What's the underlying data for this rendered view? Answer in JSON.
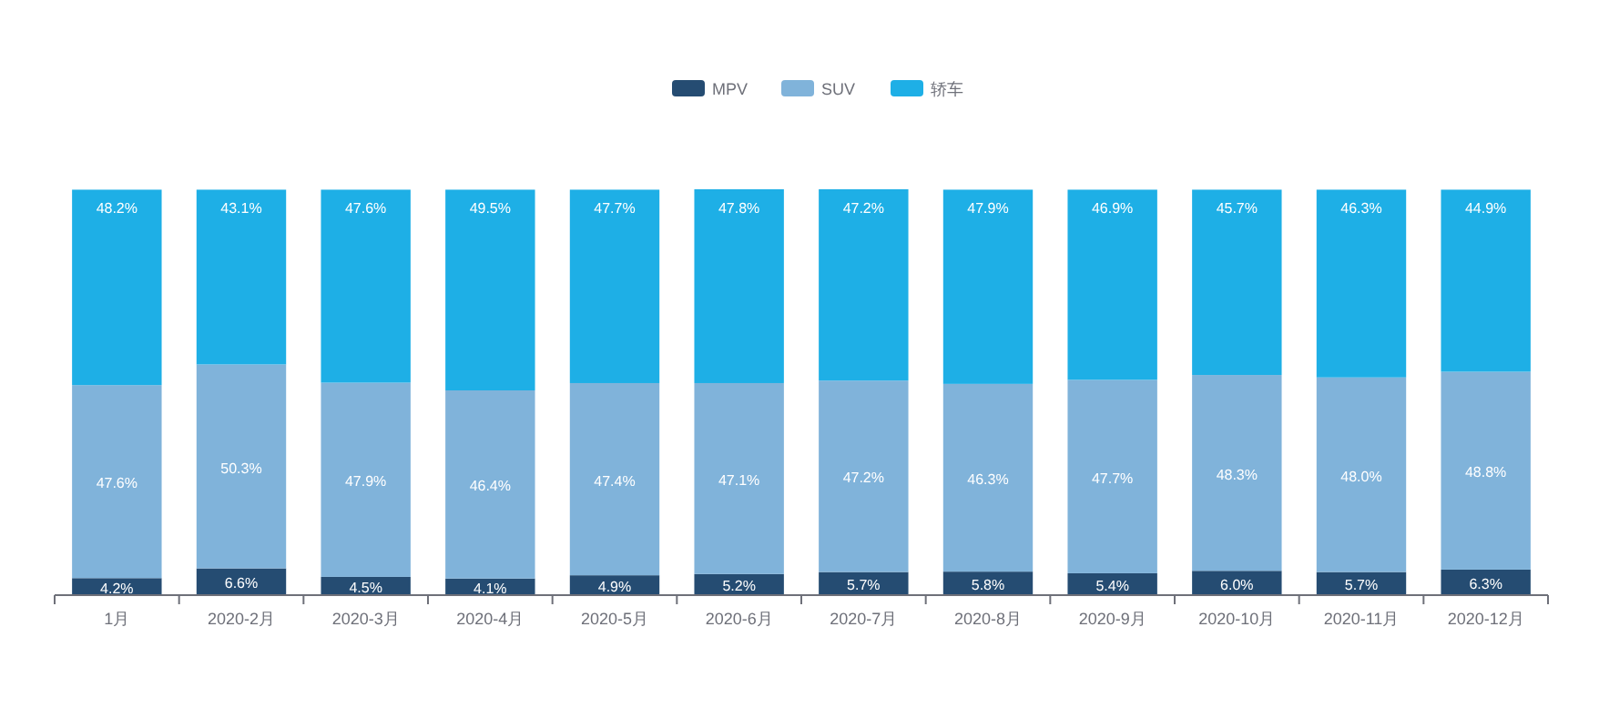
{
  "chart_data": {
    "type": "bar",
    "stacked": true,
    "legend": "top",
    "grid": false,
    "categories": [
      "1月",
      "2020-2月",
      "2020-3月",
      "2020-4月",
      "2020-5月",
      "2020-6月",
      "2020-7月",
      "2020-8月",
      "2020-9月",
      "2020-10月",
      "2020-11月",
      "2020-12月"
    ],
    "series": [
      {
        "name": "MPV",
        "color": "#254c72",
        "values": [
          4.2,
          6.6,
          4.5,
          4.1,
          4.9,
          5.2,
          5.7,
          5.8,
          5.4,
          6.0,
          5.7,
          6.3
        ],
        "value_labels": [
          "4.2%",
          "6.6%",
          "4.5%",
          "4.1%",
          "4.9%",
          "5.2%",
          "5.7%",
          "5.8%",
          "5.4%",
          "6.0%",
          "5.7%",
          "6.3%"
        ]
      },
      {
        "name": "SUV",
        "color": "#80b3da",
        "values": [
          47.6,
          50.3,
          47.9,
          46.4,
          47.4,
          47.1,
          47.2,
          46.3,
          47.7,
          48.3,
          48.0,
          48.8
        ],
        "value_labels": [
          "47.6%",
          "50.3%",
          "47.9%",
          "46.4%",
          "47.4%",
          "47.1%",
          "47.2%",
          "46.3%",
          "47.7%",
          "48.3%",
          "48.0%",
          "48.8%"
        ]
      },
      {
        "name": "轿车",
        "color": "#1eafe6",
        "values": [
          48.2,
          43.1,
          47.6,
          49.5,
          47.7,
          47.8,
          47.2,
          47.9,
          46.9,
          45.7,
          46.3,
          44.9
        ],
        "value_labels": [
          "48.2%",
          "43.1%",
          "47.6%",
          "49.5%",
          "47.7%",
          "47.8%",
          "47.2%",
          "47.9%",
          "46.9%",
          "45.7%",
          "46.3%",
          "44.9%"
        ]
      }
    ]
  }
}
